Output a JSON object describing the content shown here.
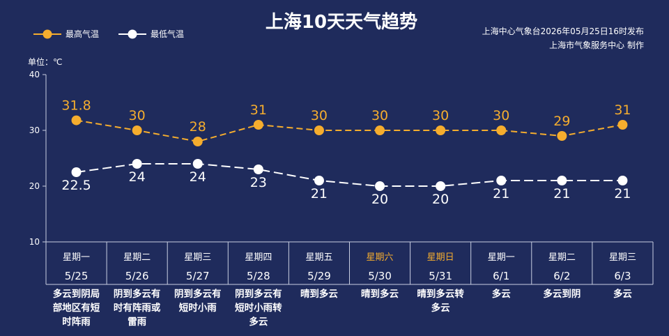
{
  "chart_data": {
    "type": "line",
    "title": "上海10天天气趋势",
    "source_lines": [
      "上海中心气象台2026年05月25日16时发布",
      "上海市气象服务中心  制作"
    ],
    "unit_label": "单位：℃",
    "ylim": [
      10,
      40
    ],
    "yticks": [
      "10",
      "20",
      "30",
      "40"
    ],
    "legend": [
      {
        "name": "最高气温",
        "color": "#f5ad2e"
      },
      {
        "name": "最低气温",
        "color": "#ffffff"
      }
    ],
    "weekend_color": "#f5ad2e",
    "categories": [
      {
        "weekday": "星期一",
        "date": "5/25",
        "weekend": false,
        "condition": "多云到阴局部地区有短时阵雨",
        "condition_lines": [
          "多云到阴局",
          "部地区有短",
          "时阵雨"
        ]
      },
      {
        "weekday": "星期二",
        "date": "5/26",
        "weekend": false,
        "condition": "阴到多云有时有阵雨或雷雨",
        "condition_lines": [
          "阴到多云有",
          "时有阵雨或",
          "雷雨"
        ]
      },
      {
        "weekday": "星期三",
        "date": "5/27",
        "weekend": false,
        "condition": "阴到多云有短时小雨",
        "condition_lines": [
          "阴到多云有",
          "短时小雨"
        ]
      },
      {
        "weekday": "星期四",
        "date": "5/28",
        "weekend": false,
        "condition": "阴到多云有短时小雨转多云",
        "condition_lines": [
          "阴到多云有",
          "短时小雨转",
          "多云"
        ]
      },
      {
        "weekday": "星期五",
        "date": "5/29",
        "weekend": false,
        "condition": "晴到多云",
        "condition_lines": [
          "晴到多云"
        ]
      },
      {
        "weekday": "星期六",
        "date": "5/30",
        "weekend": true,
        "condition": "晴到多云",
        "condition_lines": [
          "晴到多云"
        ]
      },
      {
        "weekday": "星期日",
        "date": "5/31",
        "weekend": true,
        "condition": "晴到多云转多云",
        "condition_lines": [
          "晴到多云转",
          "多云"
        ]
      },
      {
        "weekday": "星期一",
        "date": "6/1",
        "weekend": false,
        "condition": "多云",
        "condition_lines": [
          "多云"
        ]
      },
      {
        "weekday": "星期二",
        "date": "6/2",
        "weekend": false,
        "condition": "多云到阴",
        "condition_lines": [
          "多云到阴"
        ]
      },
      {
        "weekday": "星期三",
        "date": "6/3",
        "weekend": false,
        "condition": "多云",
        "condition_lines": [
          "多云"
        ]
      }
    ],
    "series": [
      {
        "name": "最高气温",
        "color": "#f5ad2e",
        "values": [
          31.8,
          30,
          28,
          31,
          30,
          30,
          30,
          30,
          29,
          31
        ],
        "labels": [
          "31.8",
          "30",
          "28",
          "31",
          "30",
          "30",
          "30",
          "30",
          "29",
          "31"
        ]
      },
      {
        "name": "最低气温",
        "color": "#ffffff",
        "values": [
          22.5,
          24,
          24,
          23,
          21,
          20,
          20,
          21,
          21,
          21
        ],
        "labels": [
          "22.5",
          "24",
          "24",
          "23",
          "21",
          "20",
          "20",
          "21",
          "21",
          "21"
        ]
      }
    ]
  }
}
